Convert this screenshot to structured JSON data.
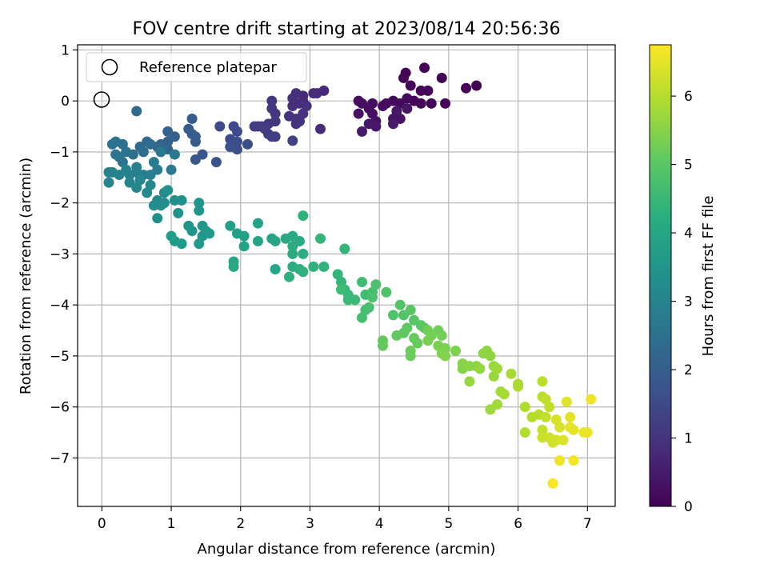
{
  "chart_data": {
    "type": "scatter",
    "title": "FOV centre drift starting at 2023/08/14 20:56:36",
    "xlabel": "Angular distance from reference (arcmin)",
    "ylabel": "Rotation from reference (arcmin)",
    "xlim": [
      -0.35,
      7.4
    ],
    "ylim": [
      -7.95,
      1.1
    ],
    "xticks": [
      0,
      1,
      2,
      3,
      4,
      5,
      6,
      7
    ],
    "xtick_labels": [
      "0",
      "1",
      "2",
      "3",
      "4",
      "5",
      "6",
      "7"
    ],
    "yticks": [
      1,
      0,
      -1,
      -2,
      -3,
      -4,
      -5,
      -6,
      -7
    ],
    "ytick_labels": [
      "1",
      "0",
      "−1",
      "−2",
      "−3",
      "−4",
      "−5",
      "−6",
      "−7"
    ],
    "grid": true,
    "colormap": "viridis",
    "colorbar": {
      "label": "Hours from first FF file",
      "range": [
        0,
        6.75
      ],
      "ticks": [
        0,
        1,
        2,
        3,
        4,
        5,
        6
      ],
      "tick_labels": [
        "0",
        "1",
        "2",
        "3",
        "4",
        "5",
        "6"
      ]
    },
    "legend": {
      "position": "top-left",
      "entries": [
        {
          "label": "Reference platepar",
          "marker": "open-circle"
        }
      ]
    },
    "reference_point": {
      "x": 0,
      "y": 0
    },
    "points": [
      [
        4.35,
        0.45,
        0.05
      ],
      [
        4.38,
        0.55,
        0.05
      ],
      [
        4.65,
        0.65,
        0.05
      ],
      [
        4.9,
        0.45,
        0.05
      ],
      [
        5.25,
        0.25,
        0.05
      ],
      [
        5.4,
        0.3,
        0.05
      ],
      [
        4.6,
        0.2,
        0.1
      ],
      [
        4.7,
        0.2,
        0.1
      ],
      [
        4.45,
        0.3,
        0.1
      ],
      [
        4.95,
        -0.05,
        0.1
      ],
      [
        4.75,
        -0.05,
        0.1
      ],
      [
        4.6,
        -0.05,
        0.1
      ],
      [
        4.5,
        0.0,
        0.1
      ],
      [
        4.4,
        0.05,
        0.15
      ],
      [
        4.3,
        -0.05,
        0.15
      ],
      [
        4.2,
        0.0,
        0.15
      ],
      [
        4.1,
        -0.05,
        0.2
      ],
      [
        4.05,
        -0.1,
        0.2
      ],
      [
        3.9,
        -0.05,
        0.2
      ],
      [
        3.75,
        -0.05,
        0.25
      ],
      [
        3.7,
        0.0,
        0.25
      ],
      [
        3.85,
        -0.15,
        0.25
      ],
      [
        3.7,
        -0.25,
        0.3
      ],
      [
        3.9,
        -0.25,
        0.3
      ],
      [
        3.95,
        -0.4,
        0.3
      ],
      [
        4.2,
        -0.35,
        0.35
      ],
      [
        4.3,
        -0.35,
        0.35
      ],
      [
        4.4,
        -0.15,
        0.4
      ],
      [
        4.25,
        -0.2,
        0.4
      ],
      [
        3.95,
        -0.5,
        0.45
      ],
      [
        3.85,
        -0.45,
        0.45
      ],
      [
        3.75,
        -0.6,
        0.5
      ],
      [
        4.2,
        -0.45,
        0.5
      ],
      [
        3.2,
        0.2,
        0.8
      ],
      [
        3.1,
        0.15,
        0.8
      ],
      [
        2.9,
        0.1,
        0.8
      ],
      [
        2.9,
        0.0,
        0.8
      ],
      [
        3.05,
        0.15,
        0.85
      ],
      [
        2.85,
        -0.05,
        0.9
      ],
      [
        2.75,
        -0.1,
        0.9
      ],
      [
        2.8,
        0.15,
        0.9
      ],
      [
        2.75,
        0.05,
        0.9
      ],
      [
        2.95,
        -0.1,
        0.95
      ],
      [
        2.9,
        -0.25,
        0.95
      ],
      [
        2.8,
        -0.35,
        1.0
      ],
      [
        2.7,
        -0.3,
        1.0
      ],
      [
        2.5,
        -0.25,
        1.05
      ],
      [
        2.45,
        -0.15,
        1.05
      ],
      [
        2.45,
        0.0,
        1.05
      ],
      [
        2.5,
        -0.4,
        1.1
      ],
      [
        2.4,
        -0.45,
        1.1
      ],
      [
        2.3,
        -0.5,
        1.15
      ],
      [
        2.25,
        -0.5,
        1.15
      ],
      [
        2.2,
        -0.5,
        1.2
      ],
      [
        2.35,
        -0.55,
        1.2
      ],
      [
        2.4,
        -0.65,
        1.2
      ],
      [
        2.45,
        -0.7,
        1.25
      ],
      [
        2.5,
        -0.7,
        1.25
      ],
      [
        2.8,
        -0.45,
        1.0
      ],
      [
        2.85,
        -0.4,
        1.0
      ],
      [
        3.15,
        -0.55,
        0.85
      ],
      [
        2.75,
        -0.78,
        1.3
      ],
      [
        1.7,
        -0.5,
        1.5
      ],
      [
        1.9,
        -0.5,
        1.5
      ],
      [
        1.95,
        -0.6,
        1.5
      ],
      [
        1.85,
        -0.75,
        1.55
      ],
      [
        1.95,
        -0.8,
        1.6
      ],
      [
        2.1,
        -0.85,
        1.6
      ],
      [
        1.95,
        -0.95,
        1.65
      ],
      [
        1.85,
        -0.9,
        1.7
      ],
      [
        1.65,
        -1.2,
        1.75
      ],
      [
        1.45,
        -1.05,
        1.8
      ],
      [
        1.35,
        -1.15,
        1.85
      ],
      [
        1.35,
        -0.8,
        1.9
      ],
      [
        1.3,
        -0.65,
        1.9
      ],
      [
        1.25,
        -0.55,
        1.95
      ],
      [
        1.3,
        -0.35,
        1.95
      ],
      [
        1.35,
        -0.7,
        2.0
      ],
      [
        1.05,
        -0.7,
        2.05
      ],
      [
        0.95,
        -0.6,
        2.1
      ],
      [
        0.95,
        -0.8,
        2.1
      ],
      [
        0.95,
        -0.95,
        2.15
      ],
      [
        0.85,
        -0.85,
        2.2
      ],
      [
        0.8,
        -0.9,
        2.25
      ],
      [
        0.7,
        -0.85,
        2.3
      ],
      [
        0.65,
        -0.8,
        2.3
      ],
      [
        0.55,
        -0.9,
        2.35
      ],
      [
        0.5,
        -0.2,
        2.35
      ],
      [
        0.6,
        -1.0,
        2.4
      ],
      [
        0.45,
        -1.05,
        2.45
      ],
      [
        0.35,
        -1.0,
        2.5
      ],
      [
        0.3,
        -0.85,
        2.5
      ],
      [
        0.2,
        -0.8,
        2.55
      ],
      [
        0.15,
        -0.85,
        2.55
      ],
      [
        0.25,
        -1.1,
        2.6
      ],
      [
        0.3,
        -1.2,
        2.6
      ],
      [
        0.2,
        -1.05,
        2.65
      ],
      [
        1.05,
        -1.05,
        2.7
      ],
      [
        0.85,
        -1.0,
        2.7
      ],
      [
        1.0,
        -1.35,
        2.75
      ],
      [
        0.8,
        -1.35,
        2.8
      ],
      [
        0.75,
        -1.2,
        2.8
      ],
      [
        0.7,
        -1.45,
        2.85
      ],
      [
        0.6,
        -1.45,
        2.85
      ],
      [
        0.5,
        -1.4,
        2.9
      ],
      [
        0.5,
        -1.3,
        2.9
      ],
      [
        0.4,
        -1.45,
        2.95
      ],
      [
        0.35,
        -1.35,
        2.95
      ],
      [
        0.25,
        -1.45,
        3.0
      ],
      [
        0.15,
        -1.4,
        3.0
      ],
      [
        0.1,
        -1.4,
        3.0
      ],
      [
        0.1,
        -1.6,
        3.05
      ],
      [
        0.4,
        -1.6,
        3.05
      ],
      [
        0.5,
        -1.7,
        3.1
      ],
      [
        0.55,
        -1.55,
        3.1
      ],
      [
        0.7,
        -1.65,
        3.15
      ],
      [
        0.65,
        -1.8,
        3.15
      ],
      [
        0.8,
        -1.95,
        3.2
      ],
      [
        0.9,
        -1.8,
        3.25
      ],
      [
        0.9,
        -2.0,
        3.25
      ],
      [
        0.85,
        -2.05,
        3.3
      ],
      [
        0.75,
        -2.05,
        3.3
      ],
      [
        0.8,
        -2.3,
        3.35
      ],
      [
        1.05,
        -1.95,
        3.35
      ],
      [
        1.15,
        -1.95,
        3.4
      ],
      [
        0.95,
        -1.75,
        3.4
      ],
      [
        1.1,
        -2.2,
        3.45
      ],
      [
        1.25,
        -2.45,
        3.45
      ],
      [
        1.3,
        -2.55,
        3.5
      ],
      [
        1.4,
        -2.0,
        3.5
      ],
      [
        1.4,
        -2.15,
        3.55
      ],
      [
        1.45,
        -2.45,
        3.55
      ],
      [
        1.5,
        -2.55,
        3.6
      ],
      [
        1.45,
        -2.65,
        3.6
      ],
      [
        1.55,
        -2.6,
        3.65
      ],
      [
        1.4,
        -2.8,
        3.65
      ],
      [
        1.15,
        -2.8,
        3.7
      ],
      [
        1.05,
        -2.75,
        3.7
      ],
      [
        1.0,
        -2.65,
        3.75
      ],
      [
        1.85,
        -2.45,
        3.8
      ],
      [
        1.95,
        -2.6,
        3.85
      ],
      [
        2.05,
        -2.65,
        3.85
      ],
      [
        2.05,
        -2.85,
        3.9
      ],
      [
        2.25,
        -2.4,
        3.9
      ],
      [
        2.25,
        -2.75,
        3.95
      ],
      [
        2.45,
        -2.7,
        3.95
      ],
      [
        2.5,
        -2.75,
        4.0
      ],
      [
        2.5,
        -3.3,
        4.0
      ],
      [
        1.9,
        -3.15,
        4.0
      ],
      [
        1.9,
        -3.25,
        4.05
      ],
      [
        2.65,
        -2.7,
        4.05
      ],
      [
        2.75,
        -2.65,
        4.1
      ],
      [
        2.85,
        -2.75,
        4.1
      ],
      [
        2.75,
        -2.85,
        4.15
      ],
      [
        2.75,
        -3.0,
        4.15
      ],
      [
        2.9,
        -3.0,
        4.2
      ],
      [
        2.75,
        -3.25,
        4.2
      ],
      [
        2.7,
        -3.45,
        4.25
      ],
      [
        2.85,
        -3.3,
        4.25
      ],
      [
        2.9,
        -3.35,
        4.3
      ],
      [
        3.05,
        -3.25,
        4.3
      ],
      [
        3.2,
        -3.25,
        4.35
      ],
      [
        2.9,
        -2.25,
        4.35
      ],
      [
        3.15,
        -2.7,
        4.4
      ],
      [
        3.5,
        -2.9,
        4.45
      ],
      [
        3.4,
        -3.4,
        4.45
      ],
      [
        3.45,
        -3.55,
        4.5
      ],
      [
        3.5,
        -3.7,
        4.5
      ],
      [
        3.55,
        -3.8,
        4.55
      ],
      [
        3.55,
        -3.9,
        4.55
      ],
      [
        3.45,
        -3.7,
        4.6
      ],
      [
        3.65,
        -3.9,
        4.6
      ],
      [
        3.75,
        -3.55,
        4.65
      ],
      [
        3.8,
        -3.8,
        4.65
      ],
      [
        3.8,
        -4.1,
        4.7
      ],
      [
        3.75,
        -4.25,
        4.7
      ],
      [
        3.85,
        -4.05,
        4.75
      ],
      [
        3.9,
        -3.75,
        4.75
      ],
      [
        3.95,
        -3.6,
        4.8
      ],
      [
        3.9,
        -3.85,
        4.8
      ],
      [
        4.1,
        -3.75,
        4.85
      ],
      [
        4.2,
        -4.2,
        4.85
      ],
      [
        4.3,
        -4.0,
        4.9
      ],
      [
        4.35,
        -4.2,
        4.9
      ],
      [
        4.45,
        -4.1,
        4.95
      ],
      [
        4.5,
        -4.3,
        4.95
      ],
      [
        4.6,
        -4.4,
        5.0
      ],
      [
        4.65,
        -4.45,
        5.0
      ],
      [
        4.4,
        -4.45,
        5.05
      ],
      [
        4.35,
        -4.55,
        5.05
      ],
      [
        4.25,
        -4.6,
        5.1
      ],
      [
        4.05,
        -4.7,
        5.1
      ],
      [
        4.05,
        -4.8,
        5.1
      ],
      [
        4.5,
        -4.65,
        5.15
      ],
      [
        4.55,
        -4.75,
        5.15
      ],
      [
        4.45,
        -4.9,
        5.2
      ],
      [
        4.45,
        -5.0,
        5.2
      ],
      [
        4.7,
        -4.5,
        5.25
      ],
      [
        4.85,
        -4.5,
        5.25
      ],
      [
        4.9,
        -4.6,
        5.3
      ],
      [
        4.75,
        -4.6,
        5.3
      ],
      [
        4.7,
        -4.7,
        5.35
      ],
      [
        4.85,
        -4.8,
        5.35
      ],
      [
        4.95,
        -4.85,
        5.4
      ],
      [
        5.1,
        -4.9,
        5.4
      ],
      [
        4.9,
        -4.95,
        5.45
      ],
      [
        4.95,
        -5.0,
        5.45
      ],
      [
        5.2,
        -5.15,
        5.5
      ],
      [
        5.2,
        -5.25,
        5.5
      ],
      [
        5.3,
        -5.2,
        5.55
      ],
      [
        5.4,
        -5.2,
        5.55
      ],
      [
        5.5,
        -4.95,
        5.6
      ],
      [
        5.55,
        -4.9,
        5.6
      ],
      [
        5.6,
        -5.0,
        5.6
      ],
      [
        5.45,
        -5.25,
        5.65
      ],
      [
        5.3,
        -5.5,
        5.65
      ],
      [
        5.65,
        -5.2,
        5.7
      ],
      [
        5.65,
        -5.4,
        5.7
      ],
      [
        5.7,
        -5.25,
        5.75
      ],
      [
        5.6,
        -6.05,
        5.75
      ],
      [
        5.7,
        -5.95,
        5.8
      ],
      [
        5.75,
        -5.7,
        5.8
      ],
      [
        5.8,
        -5.75,
        5.85
      ],
      [
        5.9,
        -5.35,
        5.85
      ],
      [
        6.0,
        -5.55,
        5.9
      ],
      [
        6.0,
        -5.6,
        5.9
      ],
      [
        6.1,
        -6.0,
        5.95
      ],
      [
        6.1,
        -6.5,
        5.95
      ],
      [
        6.2,
        -6.2,
        6.0
      ],
      [
        6.3,
        -6.15,
        6.0
      ],
      [
        6.35,
        -5.5,
        6.05
      ],
      [
        6.35,
        -5.8,
        6.05
      ],
      [
        6.4,
        -5.85,
        6.1
      ],
      [
        6.45,
        -6.0,
        6.1
      ],
      [
        6.4,
        -6.2,
        6.15
      ],
      [
        6.35,
        -6.45,
        6.15
      ],
      [
        6.35,
        -6.6,
        6.2
      ],
      [
        6.45,
        -6.6,
        6.25
      ],
      [
        6.5,
        -6.7,
        6.3
      ],
      [
        6.55,
        -6.65,
        6.3
      ],
      [
        6.55,
        -6.25,
        6.35
      ],
      [
        6.6,
        -6.4,
        6.35
      ],
      [
        6.65,
        -6.65,
        6.4
      ],
      [
        6.7,
        -5.9,
        6.45
      ],
      [
        6.75,
        -6.2,
        6.45
      ],
      [
        6.75,
        -6.4,
        6.5
      ],
      [
        6.8,
        -6.45,
        6.5
      ],
      [
        6.95,
        -6.5,
        6.55
      ],
      [
        7.0,
        -6.5,
        6.55
      ],
      [
        7.05,
        -5.85,
        6.6
      ],
      [
        6.6,
        -7.05,
        6.6
      ],
      [
        6.8,
        -7.05,
        6.65
      ],
      [
        6.5,
        -7.5,
        6.7
      ]
    ]
  }
}
